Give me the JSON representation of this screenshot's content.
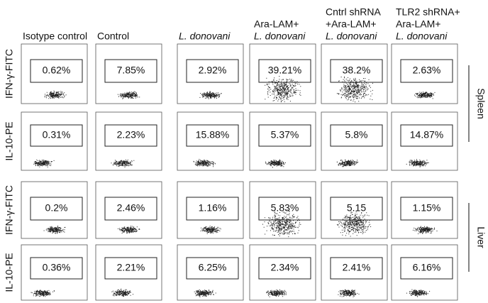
{
  "columns": [
    {
      "lines": [
        {
          "text": "Isotype control",
          "italic": false
        }
      ]
    },
    {
      "lines": [
        {
          "text": "Control",
          "italic": false
        }
      ]
    },
    {
      "lines": [
        {
          "text": "L. donovani",
          "italic": true
        }
      ]
    },
    {
      "lines": [
        {
          "text": "Ara-LAM+",
          "italic": false
        },
        {
          "text": "L. donovani",
          "italic": true
        }
      ]
    },
    {
      "lines": [
        {
          "text": "Cntrl shRNA",
          "italic": false
        },
        {
          "text": "+Ara-LAM+",
          "italic": false
        },
        {
          "text": "L. donovani",
          "italic": true
        }
      ]
    },
    {
      "lines": [
        {
          "text": "TLR2 shRNA+",
          "italic": false
        },
        {
          "text": "Ara-LAM+",
          "italic": false
        },
        {
          "text": "L. donovani",
          "italic": true
        }
      ]
    }
  ],
  "rows": [
    {
      "label": "IFN-γ-FITC",
      "values": [
        "0.62%",
        "7.85%",
        "2.92%",
        "39.21%",
        "38.2%",
        "2.63%"
      ]
    },
    {
      "label": "IL-10-PE",
      "values": [
        "0.31%",
        "2.23%",
        "15.88%",
        "5.37%",
        "5.8%",
        "14.87%"
      ]
    },
    {
      "label": "IFN-γ-FITC",
      "values": [
        "0.2%",
        "2.46%",
        "1.16%",
        "5.83%",
        "5.15",
        "1.15%"
      ]
    },
    {
      "label": "IL-10-PE",
      "values": [
        "0.36%",
        "2.21%",
        "6.25%",
        "2.34%",
        "2.41%",
        "6.16%"
      ]
    }
  ],
  "groups": [
    {
      "label": "Spleen"
    },
    {
      "label": "Liver"
    }
  ]
}
